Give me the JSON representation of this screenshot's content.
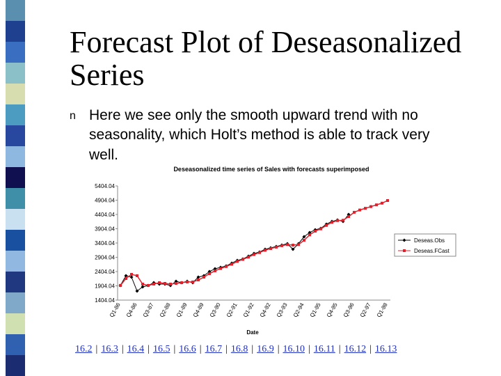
{
  "title_lines": [
    "Forecast Plot of Deseasonalized",
    "Series"
  ],
  "bullet": {
    "marker": "n",
    "lines": [
      "Here we see only the smooth upward trend with no",
      "seasonality, which Holt’s method is able to track very",
      "well."
    ]
  },
  "nav": {
    "separator": "|",
    "links": [
      "16.2",
      "16.3",
      "16.4",
      "16.5",
      "16.6",
      "16.7",
      "16.8",
      "16.9",
      "16.10",
      "16.11",
      "16.12",
      "16.13"
    ]
  },
  "chart_data": {
    "type": "line",
    "title": "Deseasonalized time series of Sales with forecasts superimposed",
    "x_label": "Date",
    "categories": [
      "Q1-86",
      null,
      null,
      "Q4-86",
      null,
      null,
      "Q3-87",
      null,
      null,
      "Q2-88",
      null,
      null,
      "Q1-89",
      null,
      null,
      "Q4-89",
      null,
      null,
      "Q3-90",
      null,
      null,
      "Q2-91",
      null,
      null,
      "Q1-92",
      null,
      null,
      "Q4-92",
      null,
      null,
      "Q3-93",
      null,
      null,
      "Q2-94",
      null,
      null,
      "Q1-95",
      null,
      null,
      "Q4-95",
      null,
      null,
      "Q3-96",
      null,
      null,
      "Q2-97",
      null,
      null,
      "Q1-98"
    ],
    "series": [
      {
        "name": "Deseas.Obs",
        "color": "#000000",
        "values": [
          1916,
          2258,
          2209,
          1721,
          1867,
          1916,
          2014,
          1965,
          1965,
          1916,
          2063,
          2014,
          2063,
          2014,
          2209,
          2258,
          2404,
          2502,
          2550,
          2600,
          2697,
          2795,
          2843,
          2941,
          3038,
          3087,
          3185,
          3233,
          3282,
          3331,
          3380,
          3185,
          3380,
          3624,
          3770,
          3868,
          3917,
          4063,
          4161,
          4209,
          4161,
          4404,
          null,
          null,
          null,
          null,
          null,
          null,
          null
        ]
      },
      {
        "name": "Deseas.FCast",
        "color": "#e0202a",
        "values": [
          1916,
          2160,
          2306,
          2258,
          1965,
          1916,
          1965,
          2014,
          1990,
          1965,
          1990,
          2014,
          2040,
          2040,
          2110,
          2209,
          2330,
          2430,
          2510,
          2580,
          2660,
          2760,
          2830,
          2910,
          3000,
          3070,
          3150,
          3210,
          3260,
          3310,
          3350,
          3330,
          3350,
          3500,
          3690,
          3820,
          3900,
          4020,
          4130,
          4190,
          4200,
          4330,
          4480,
          4560,
          4620,
          4680,
          4740,
          4800,
          4892
        ]
      }
    ],
    "ylim": [
      1404.04,
      5404.04
    ],
    "yticks": [
      1404.04,
      1904.04,
      2404.04,
      2904.04,
      3404.04,
      3904.04,
      4404.04,
      4904.04,
      5404.04
    ],
    "legend": "right"
  }
}
